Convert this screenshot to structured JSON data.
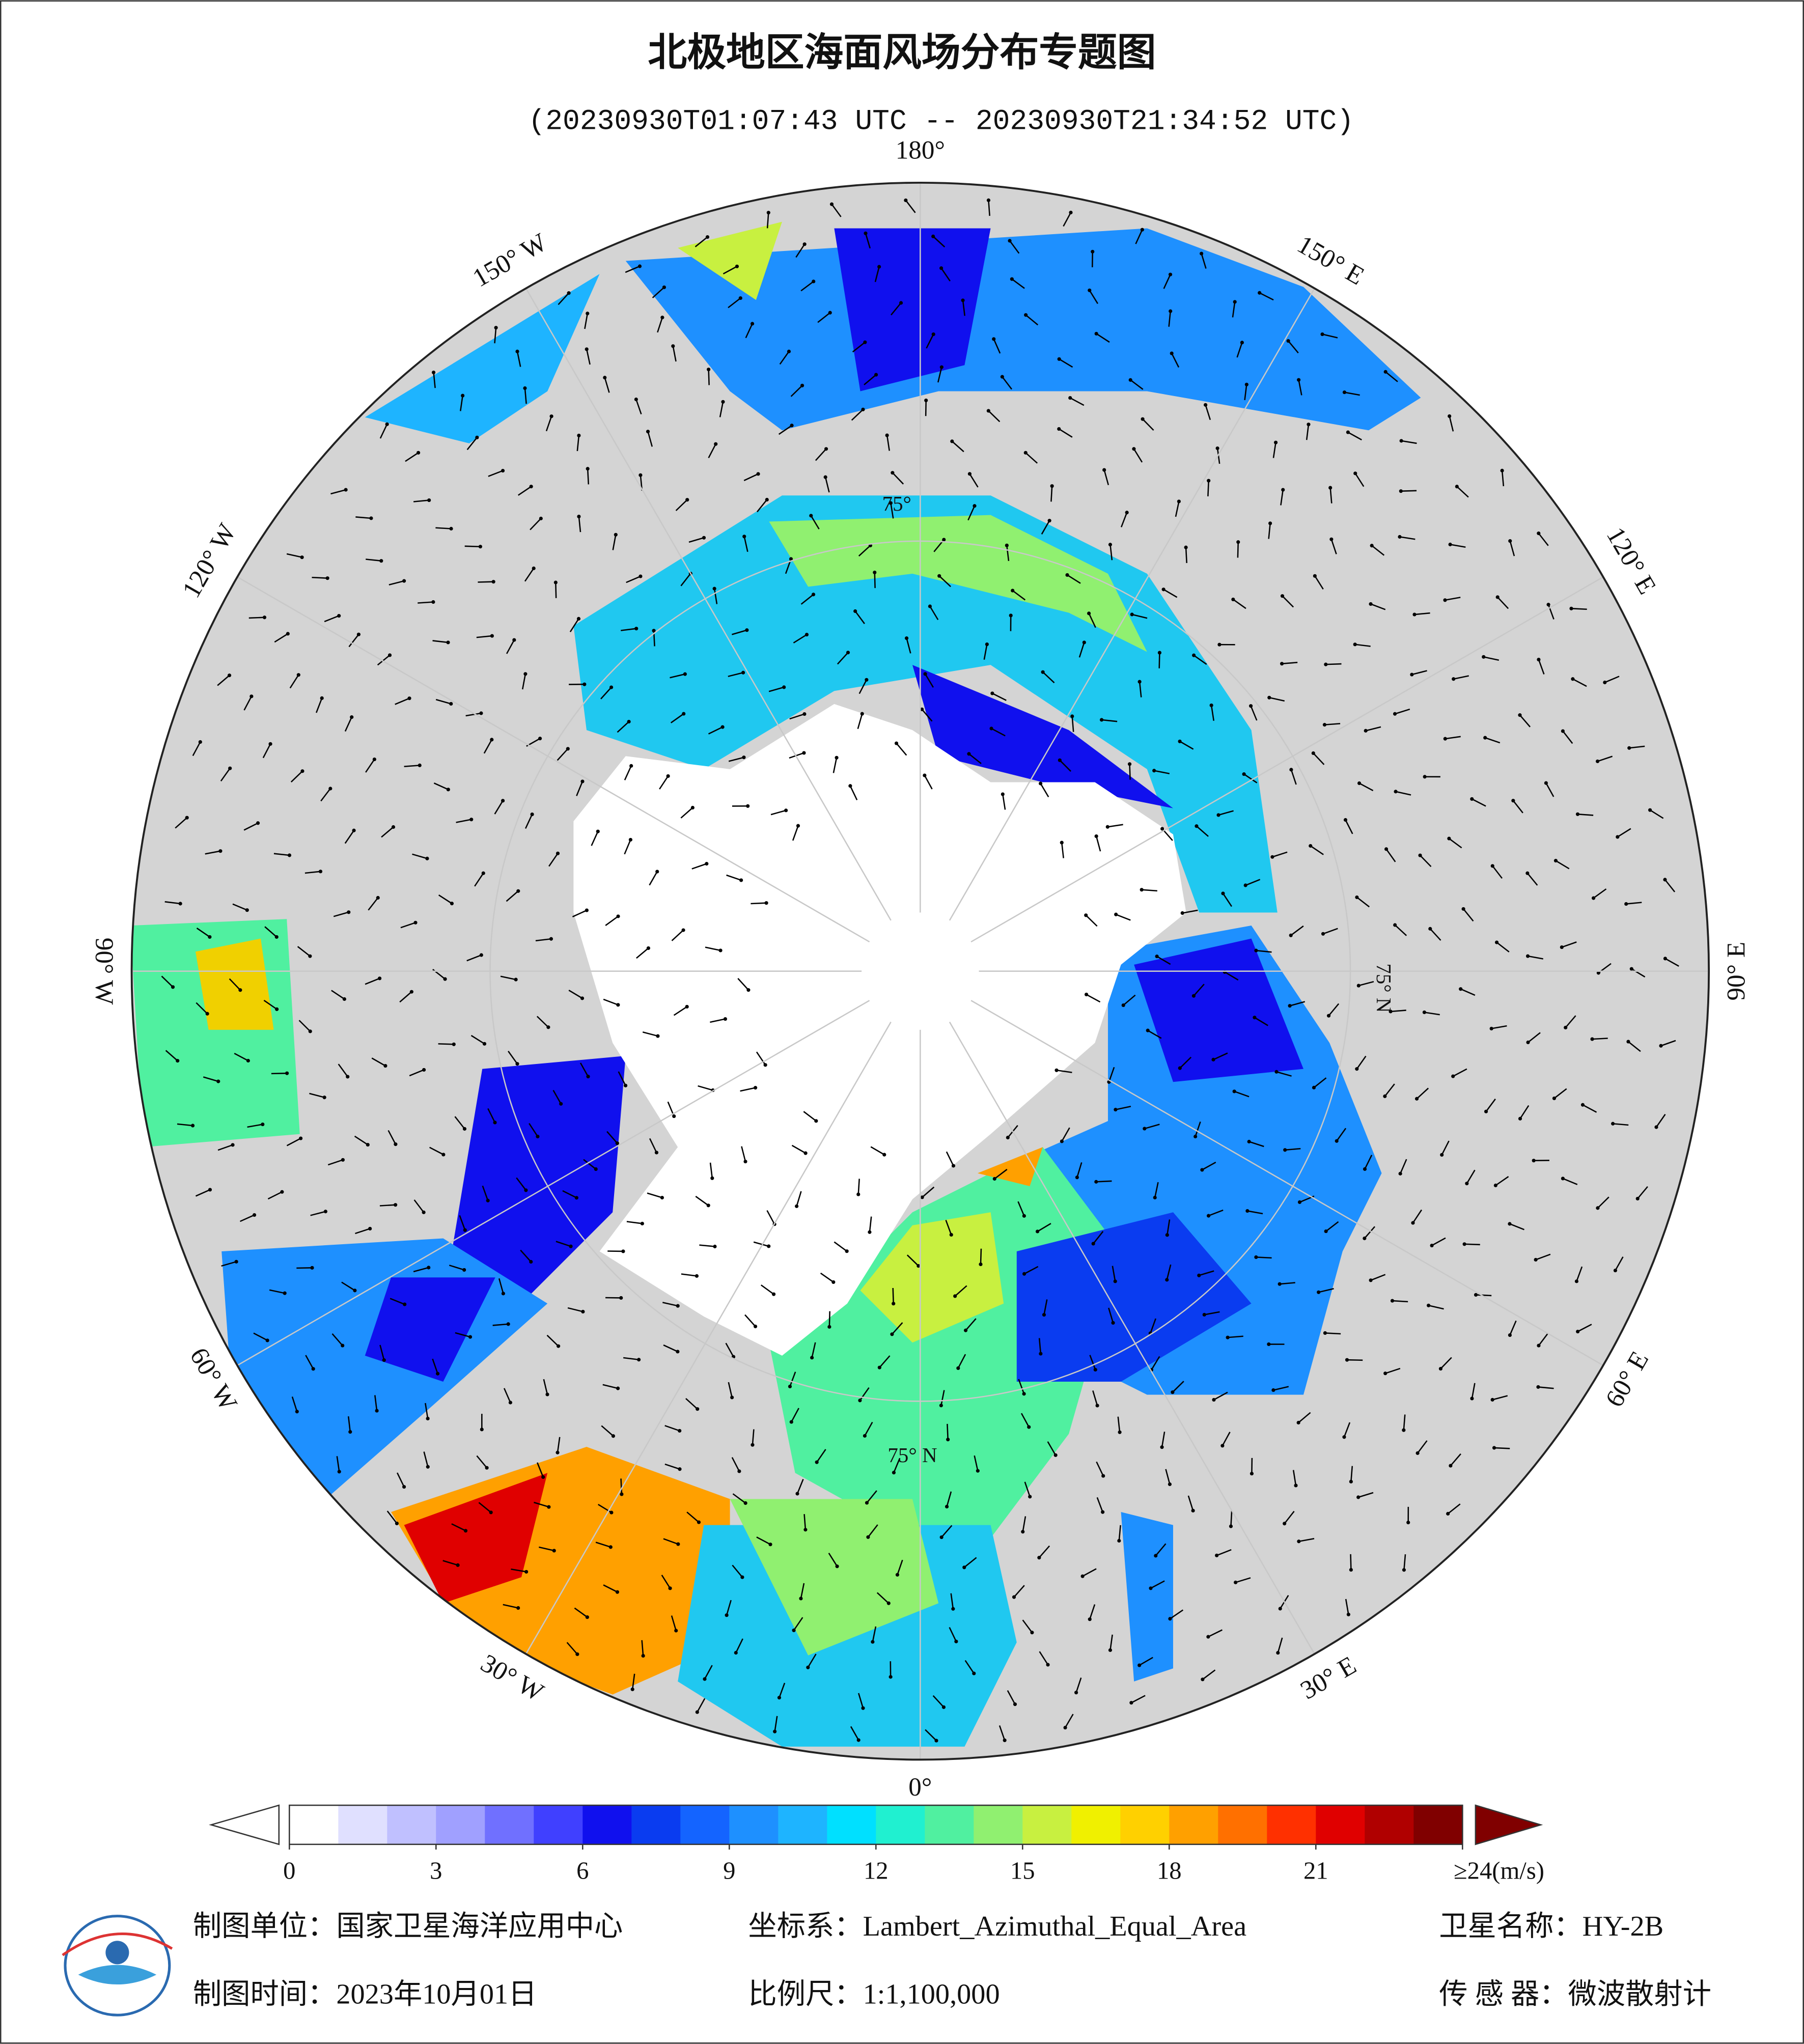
{
  "header": {
    "title": "北极地区海面风场分布专题图",
    "subtitle": "(20230930T01:07:43 UTC -- 20230930T21:34:52 UTC)"
  },
  "map": {
    "longitude_labels": [
      "0°",
      "30° E",
      "60° E",
      "90° E",
      "120° E",
      "150° E",
      "180°",
      "150° W",
      "120° W",
      "90° W",
      "60° W",
      "30° W"
    ],
    "latitude_labels": [
      "75°",
      "75° N",
      "75° N"
    ]
  },
  "colorbar": {
    "lim": [
      0,
      24
    ],
    "ticks": [
      0,
      3,
      6,
      9,
      12,
      15,
      18,
      21,
      {
        "value": 24,
        "label": "≥24(m/s)"
      }
    ],
    "colors": [
      "#ffffff",
      "#e0e0ff",
      "#c0c0ff",
      "#a0a0ff",
      "#7070ff",
      "#4040ff",
      "#1010ee",
      "#0a3cf0",
      "#1464ff",
      "#1e90ff",
      "#1eb4ff",
      "#00e0ff",
      "#20f0d0",
      "#50f0a0",
      "#90f070",
      "#c8f040",
      "#f0f000",
      "#ffd000",
      "#ffa000",
      "#ff7000",
      "#ff3000",
      "#e00000",
      "#b00000",
      "#800000"
    ]
  },
  "footer": {
    "unit": "制图单位：国家卫星海洋应用中心",
    "projection": "坐标系：Lambert_Azimuthal_Equal_Area",
    "satellite": "卫星名称：HY-2B",
    "date": "制图时间：2023年10月01日",
    "scale": "比例尺：1:1,100,000",
    "sensor": "传 感 器：微波散射计"
  }
}
